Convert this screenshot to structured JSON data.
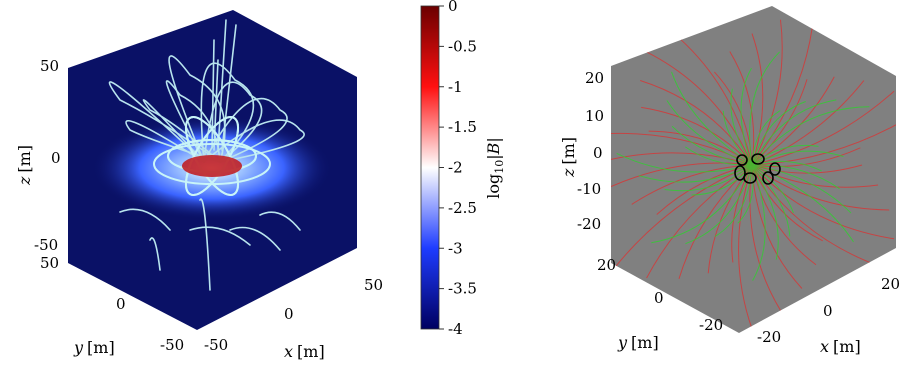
{
  "chart_data": [
    {
      "type": "3d-field-plot",
      "panel": "left",
      "colormap": "blue-white-red",
      "colorbar": {
        "label": "log10|B|",
        "label_parts": {
          "base": "log",
          "sub": "10",
          "rest": "|B|"
        },
        "range": [
          -4,
          0
        ],
        "ticks": [
          {
            "value": 0,
            "label": "0"
          },
          {
            "value": -0.5,
            "label": "-0.5"
          },
          {
            "value": -1,
            "label": "-1"
          },
          {
            "value": -1.5,
            "label": "-1.5"
          },
          {
            "value": -2,
            "label": "-2"
          },
          {
            "value": -2.5,
            "label": "-2.5"
          },
          {
            "value": -3,
            "label": "-3"
          },
          {
            "value": -3.5,
            "label": "-3.5"
          },
          {
            "value": -4,
            "label": "-4"
          }
        ]
      },
      "axes": {
        "x": {
          "label": "x [m]",
          "var": "x",
          "unit": "[m]",
          "ticks": [
            "-50",
            "0",
            "50"
          ],
          "range": [
            -50,
            50
          ]
        },
        "y": {
          "label": "y [m]",
          "var": "y",
          "unit": "[m]",
          "ticks": [
            "50",
            "0",
            "-50"
          ],
          "range": [
            -50,
            50
          ]
        },
        "z": {
          "label": "z [m]",
          "var": "z",
          "unit": "[m]",
          "ticks": [
            "50",
            "0",
            "-50"
          ],
          "range": [
            -50,
            50
          ]
        }
      },
      "colors": {
        "background": "#0a1166",
        "glow": "#3d6cff",
        "streamline": "#b8e4ee",
        "coil": "#bff0f5",
        "core": "#c0151a"
      }
    },
    {
      "type": "3d-field-plot",
      "panel": "right",
      "axes": {
        "x": {
          "label": "x [m]",
          "var": "x",
          "unit": "[m]",
          "ticks": [
            "-20",
            "0",
            "20"
          ],
          "range": [
            -25,
            25
          ]
        },
        "y": {
          "label": "y [m]",
          "var": "y",
          "unit": "[m]",
          "ticks": [
            "20",
            "0",
            "-20"
          ],
          "range": [
            -25,
            25
          ]
        },
        "z": {
          "label": "z [m]",
          "var": "z",
          "unit": "[m]",
          "ticks": [
            "20",
            "10",
            "0",
            "-10",
            "-20"
          ],
          "range": [
            -25,
            25
          ]
        }
      },
      "colors": {
        "background": "#808080",
        "red_lines": "#d23a3a",
        "green_lines": "#2fcf2f",
        "coils": "#000000"
      }
    }
  ]
}
